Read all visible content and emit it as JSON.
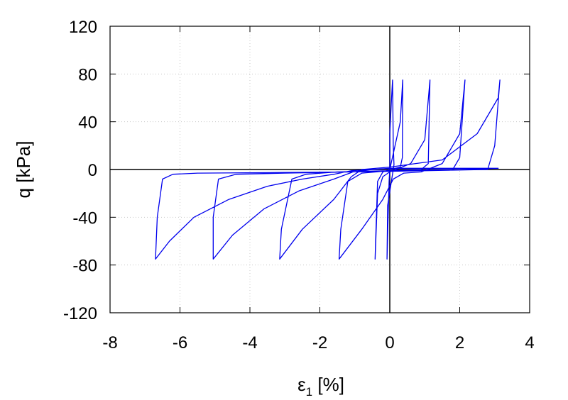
{
  "chart_data": {
    "type": "line",
    "title": "",
    "xlabel": {
      "main": "ε",
      "sub": "1",
      "unit": " [%]"
    },
    "ylabel": "q [kPa]",
    "xlim": [
      -8,
      4
    ],
    "ylim": [
      -120,
      120
    ],
    "x_ticks": [
      -8,
      -6,
      -4,
      -2,
      0,
      2,
      4
    ],
    "y_ticks": [
      -120,
      -80,
      -40,
      0,
      40,
      80,
      120
    ],
    "grid": true,
    "legend": "none",
    "zero_lines": true,
    "colors": {
      "series": "#0000ee",
      "grid": "#c8c8c8",
      "axes": "#000000"
    },
    "series": [
      {
        "values": [
          [
            0,
            0
          ],
          [
            0.0,
            30
          ],
          [
            0.05,
            60
          ],
          [
            0.08,
            75
          ],
          [
            0.1,
            20
          ],
          [
            0.12,
            4
          ],
          [
            -0.06,
            -30
          ],
          [
            -0.08,
            -75
          ],
          [
            -0.02,
            -10
          ],
          [
            0,
            0
          ],
          [
            0.3,
            40
          ],
          [
            0.37,
            75
          ],
          [
            0.36,
            10
          ],
          [
            0.3,
            2
          ],
          [
            0,
            0
          ],
          [
            -0.2,
            -2
          ],
          [
            -0.35,
            -10
          ],
          [
            -0.4,
            -55
          ],
          [
            -0.42,
            -75
          ],
          [
            -0.35,
            -20
          ],
          [
            -0.2,
            -6
          ],
          [
            0,
            -2
          ],
          [
            0.6,
            5
          ],
          [
            1.0,
            25
          ],
          [
            1.15,
            75
          ],
          [
            1.1,
            5
          ],
          [
            0.9,
            0
          ],
          [
            0,
            -1
          ],
          [
            -0.8,
            -3
          ],
          [
            -1.2,
            -10
          ],
          [
            -1.4,
            -50
          ],
          [
            -1.45,
            -75
          ],
          [
            -0.8,
            -50
          ],
          [
            -0.2,
            -25
          ],
          [
            0.1,
            -8
          ],
          [
            0.4,
            -3
          ],
          [
            0.9,
            -2
          ],
          [
            1.5,
            5
          ],
          [
            2.0,
            30
          ],
          [
            2.15,
            75
          ],
          [
            2.0,
            10
          ],
          [
            1.8,
            0
          ],
          [
            0,
            -1
          ],
          [
            -1.5,
            -2
          ],
          [
            -2.4,
            -4
          ],
          [
            -2.8,
            -8
          ],
          [
            -3.1,
            -50
          ],
          [
            -3.15,
            -75
          ],
          [
            -2.5,
            -50
          ],
          [
            -1.6,
            -25
          ],
          [
            -1.1,
            -6
          ],
          [
            -0.8,
            0
          ],
          [
            0,
            2
          ],
          [
            1.5,
            8
          ],
          [
            2.5,
            30
          ],
          [
            3.1,
            60
          ],
          [
            3.15,
            75
          ],
          [
            3.0,
            20
          ],
          [
            2.8,
            0
          ],
          [
            1,
            -1
          ],
          [
            -1,
            -2
          ],
          [
            -3,
            -3
          ],
          [
            -4.4,
            -4
          ],
          [
            -4.9,
            -8
          ],
          [
            -5.05,
            -40
          ],
          [
            -5.05,
            -75
          ],
          [
            -4.5,
            -55
          ],
          [
            -3.6,
            -33
          ],
          [
            -2.6,
            -18
          ],
          [
            -1.6,
            -8
          ],
          [
            -1.05,
            -2
          ],
          [
            -0.5,
            0
          ],
          [
            0,
            1
          ],
          [
            1.5,
            1
          ],
          [
            2.9,
            1
          ],
          [
            3.1,
            1
          ],
          [
            1,
            -1
          ],
          [
            -1,
            -2
          ],
          [
            -3,
            -2.5
          ],
          [
            -5.5,
            -3
          ],
          [
            -6.2,
            -4
          ],
          [
            -6.5,
            -8
          ],
          [
            -6.65,
            -40
          ],
          [
            -6.7,
            -75
          ],
          [
            -6.3,
            -60
          ],
          [
            -5.6,
            -40
          ],
          [
            -4.6,
            -25
          ],
          [
            -3.5,
            -14
          ],
          [
            -2.5,
            -8
          ],
          [
            -1.6,
            -4
          ],
          [
            -1.1,
            -1
          ],
          [
            -0.5,
            0
          ]
        ]
      }
    ]
  }
}
